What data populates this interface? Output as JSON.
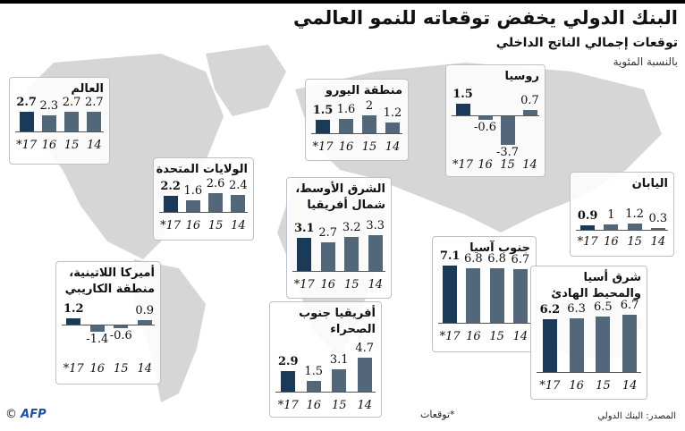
{
  "header": {
    "title": "البنك الدولي يخفض توقعاته للنمو العالمي",
    "subtitle": "توقعات إجمالي الناتج الداخلي",
    "unit": "بالنسبة المئوية"
  },
  "footer": {
    "source": "المصدر: البنك الدولي",
    "note": "*توقعات",
    "copyright": "©",
    "agency": "AFP"
  },
  "colors": {
    "forecast_bar": "#1b3a57",
    "actual_bar": "#53677a",
    "box_border": "#b9c2ca",
    "map": "#d4d4d4"
  },
  "year_labels": [
    "*17",
    "16",
    "15",
    "14"
  ],
  "chart_data": [
    {
      "type": "bar",
      "title": "العالم",
      "categories": [
        "2017*",
        "2016",
        "2015",
        "2014"
      ],
      "values": [
        2.7,
        2.3,
        2.7,
        2.7
      ]
    },
    {
      "type": "bar",
      "title": "منطقة اليورو",
      "categories": [
        "2017*",
        "2016",
        "2015",
        "2014"
      ],
      "values": [
        1.5,
        1.6,
        2,
        1.2
      ]
    },
    {
      "type": "bar",
      "title": "روسيا",
      "categories": [
        "2017*",
        "2016",
        "2015",
        "2014"
      ],
      "values": [
        1.5,
        -0.6,
        -3.7,
        0.7
      ]
    },
    {
      "type": "bar",
      "title": "الولايات المتحدة",
      "categories": [
        "2017*",
        "2016",
        "2015",
        "2014"
      ],
      "values": [
        2.2,
        1.6,
        2.6,
        2.4
      ]
    },
    {
      "type": "bar",
      "title": "الشرق الأوسط، شمال أفريقيا",
      "categories": [
        "2017*",
        "2016",
        "2015",
        "2014"
      ],
      "values": [
        3.1,
        2.7,
        3.2,
        3.3
      ]
    },
    {
      "type": "bar",
      "title": "اليابان",
      "categories": [
        "2017*",
        "2016",
        "2015",
        "2014"
      ],
      "values": [
        0.9,
        1,
        1.2,
        0.3
      ]
    },
    {
      "type": "bar",
      "title": "جنوب آسيا",
      "categories": [
        "2017*",
        "2016",
        "2015",
        "2014"
      ],
      "values": [
        7.1,
        6.8,
        6.8,
        6.7
      ]
    },
    {
      "type": "bar",
      "title": "أميركا اللاتينية، منطقة الكاريبي",
      "categories": [
        "2017*",
        "2016",
        "2015",
        "2014"
      ],
      "values": [
        1.2,
        -1.4,
        -0.6,
        0.9
      ]
    },
    {
      "type": "bar",
      "title": "شرق أسيا والمحيط الهادئ",
      "categories": [
        "2017*",
        "2016",
        "2015",
        "2014"
      ],
      "values": [
        6.2,
        6.3,
        6.5,
        6.7
      ]
    },
    {
      "type": "bar",
      "title": "أفريقيا جنوب الصحراء",
      "categories": [
        "2017*",
        "2016",
        "2015",
        "2014"
      ],
      "values": [
        2.9,
        1.5,
        3.1,
        4.7
      ]
    }
  ],
  "boxes": [
    {
      "name": "العالم",
      "labels": [
        "2.7",
        "2.3",
        "2.7",
        "2.7"
      ]
    },
    {
      "name": "منطقة اليورو",
      "labels": [
        "1.5",
        "1.6",
        "2",
        "1.2"
      ]
    },
    {
      "name": "روسيا",
      "labels": [
        "1.5",
        "-0.6",
        "-3.7",
        "0.7"
      ]
    },
    {
      "name": "الولايات المتحدة",
      "labels": [
        "2.2",
        "1.6",
        "2.6",
        "2.4"
      ]
    },
    {
      "name": "الشرق الأوسط،\nشمال أفريقيا",
      "labels": [
        "3.1",
        "2.7",
        "3.2",
        "3.3"
      ]
    },
    {
      "name": "اليابان",
      "labels": [
        "0.9",
        "1",
        "1.2",
        "0.3"
      ]
    },
    {
      "name": "جنوب آسيا",
      "labels": [
        "7.1",
        "6.8",
        "6.8",
        "6.7"
      ]
    },
    {
      "name": "أميركا اللاتينية،\nمنطقة الكاريبي",
      "labels": [
        "1.2",
        "-1.4",
        "-0.6",
        "0.9"
      ]
    },
    {
      "name": "شرق أسيا\nوالمحيط الهادئ",
      "labels": [
        "6.2",
        "6.3",
        "6.5",
        "6.7"
      ]
    },
    {
      "name": "أفريقيا جنوب\nالصحراء",
      "labels": [
        "2.9",
        "1.5",
        "3.1",
        "4.7"
      ]
    }
  ]
}
